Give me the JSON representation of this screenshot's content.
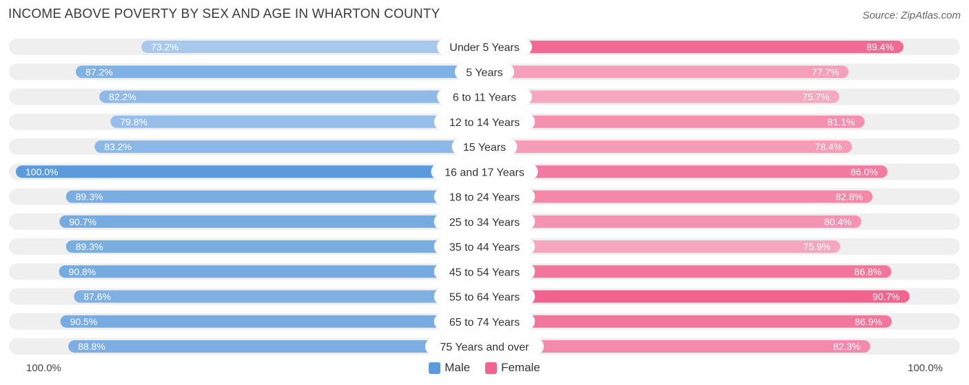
{
  "header": {
    "title": "INCOME ABOVE POVERTY BY SEX AND AGE IN WHARTON COUNTY",
    "source": "Source: ZipAtlas.com"
  },
  "colors": {
    "male_strong": "#5b9bdc",
    "male_light": "#a9c9ec",
    "female_strong": "#f0648f",
    "female_light": "#f6a8c1",
    "track": "#efefef"
  },
  "chart_data": {
    "type": "bar",
    "orientation": "horizontal-diverging",
    "title": "INCOME ABOVE POVERTY BY SEX AND AGE IN WHARTON COUNTY",
    "categories": [
      "Under 5 Years",
      "5 Years",
      "6 to 11 Years",
      "12 to 14 Years",
      "15 Years",
      "16 and 17 Years",
      "18 to 24 Years",
      "25 to 34 Years",
      "35 to 44 Years",
      "45 to 54 Years",
      "55 to 64 Years",
      "65 to 74 Years",
      "75 Years and over"
    ],
    "series": [
      {
        "name": "Male",
        "values": [
          73.2,
          87.2,
          82.2,
          79.8,
          83.2,
          100.0,
          89.3,
          90.7,
          89.3,
          90.8,
          87.6,
          90.5,
          88.8
        ],
        "labels": [
          "73.2%",
          "87.2%",
          "82.2%",
          "79.8%",
          "83.2%",
          "100.0%",
          "89.3%",
          "90.7%",
          "89.3%",
          "90.8%",
          "87.6%",
          "90.5%",
          "88.8%"
        ]
      },
      {
        "name": "Female",
        "values": [
          89.4,
          77.7,
          75.7,
          81.1,
          78.4,
          86.0,
          82.8,
          80.4,
          75.9,
          86.8,
          90.7,
          86.9,
          82.3
        ],
        "labels": [
          "89.4%",
          "77.7%",
          "75.7%",
          "81.1%",
          "78.4%",
          "86.0%",
          "82.8%",
          "80.4%",
          "75.9%",
          "86.8%",
          "90.7%",
          "86.9%",
          "82.3%"
        ]
      }
    ],
    "xlim": [
      0,
      100
    ],
    "axis_left_label": "100.0%",
    "axis_right_label": "100.0%",
    "legend": [
      "Male",
      "Female"
    ],
    "legend_position": "bottom-center"
  }
}
